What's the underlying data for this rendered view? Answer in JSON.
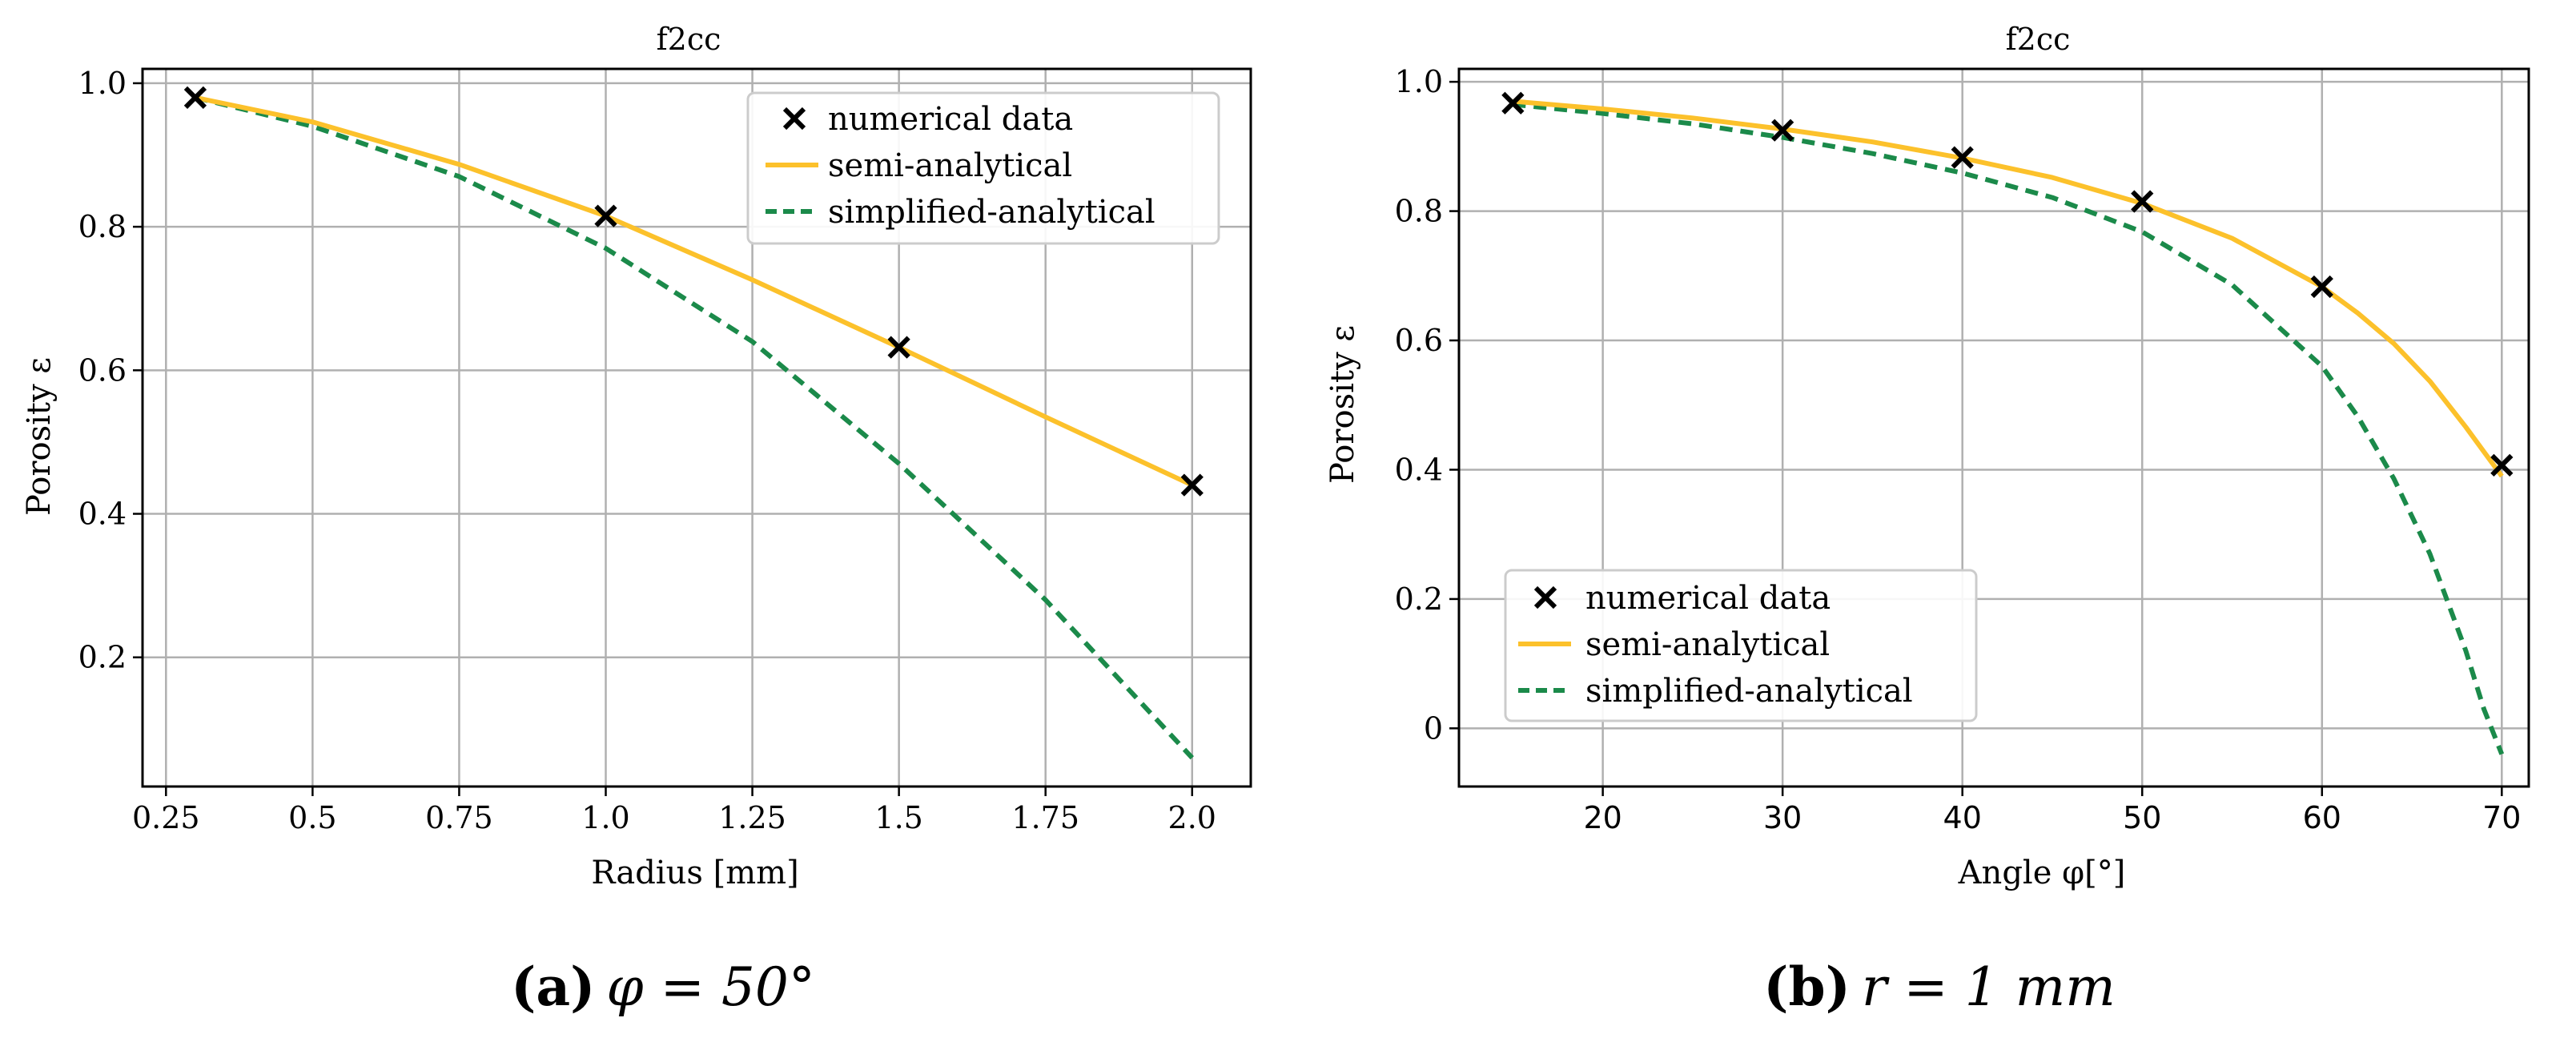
{
  "chart_data": [
    {
      "type": "line",
      "title": "f2cc",
      "xlabel": "Radius [mm]",
      "ylabel": "Porosity ε",
      "xlim": [
        0.21,
        2.1
      ],
      "ylim": [
        0.02,
        1.02
      ],
      "xticks": [
        "0.25",
        "0.5",
        "0.75",
        "1.0",
        "1.25",
        "1.5",
        "1.75",
        "2.0"
      ],
      "xtick_values": [
        0.25,
        0.5,
        0.75,
        1.0,
        1.25,
        1.5,
        1.75,
        2.0
      ],
      "yticks": [
        "0.2",
        "0.4",
        "0.6",
        "0.8",
        "1.0"
      ],
      "ytick_values": [
        0.2,
        0.4,
        0.6,
        0.8,
        1.0
      ],
      "grid": true,
      "legend_position": "top-right",
      "caption_label": "(a)",
      "caption_text": "φ = 50°",
      "series": [
        {
          "name": "numerical data",
          "style": "markers",
          "color": "#000000",
          "x": [
            0.3,
            1.0,
            1.5,
            2.0
          ],
          "y": [
            0.98,
            0.815,
            0.632,
            0.44
          ]
        },
        {
          "name": "semi-analytical",
          "style": "solid",
          "color": "#fcc12b",
          "x": [
            0.3,
            0.5,
            0.75,
            1.0,
            1.25,
            1.5,
            1.75,
            2.0
          ],
          "y": [
            0.98,
            0.946,
            0.887,
            0.815,
            0.726,
            0.632,
            0.535,
            0.44
          ]
        },
        {
          "name": "simplified-analytical",
          "style": "dashed",
          "color": "#1b8a4a",
          "x": [
            0.3,
            0.5,
            0.75,
            1.0,
            1.25,
            1.5,
            1.75,
            2.0
          ],
          "y": [
            0.98,
            0.94,
            0.87,
            0.77,
            0.64,
            0.47,
            0.28,
            0.06
          ]
        }
      ]
    },
    {
      "type": "line",
      "title": "f2cc",
      "xlabel": "Angle φ[°]",
      "ylabel": "Porosity ε",
      "xlim": [
        12.0,
        71.5
      ],
      "ylim": [
        -0.09,
        1.02
      ],
      "xticks": [
        "20",
        "30",
        "40",
        "50",
        "60",
        "70"
      ],
      "xtick_values": [
        20,
        30,
        40,
        50,
        60,
        70
      ],
      "yticks": [
        "0",
        "0.2",
        "0.4",
        "0.6",
        "0.8",
        "1.0"
      ],
      "ytick_values": [
        0,
        0.2,
        0.4,
        0.6,
        0.8,
        1.0
      ],
      "grid": true,
      "legend_position": "lower-left",
      "caption_label": "(b)",
      "caption_text": "r = 1 mm",
      "series": [
        {
          "name": "numerical data",
          "style": "markers",
          "color": "#000000",
          "x": [
            15,
            30,
            40,
            50,
            60,
            70
          ],
          "y": [
            0.967,
            0.925,
            0.883,
            0.815,
            0.683,
            0.407
          ]
        },
        {
          "name": "semi-analytical",
          "style": "solid",
          "color": "#fcc12b",
          "x": [
            15,
            20,
            25,
            30,
            35,
            40,
            45,
            50,
            55,
            60,
            62,
            64,
            66,
            68,
            70
          ],
          "y": [
            0.97,
            0.958,
            0.944,
            0.927,
            0.907,
            0.882,
            0.852,
            0.812,
            0.758,
            0.683,
            0.642,
            0.595,
            0.537,
            0.466,
            0.39
          ]
        },
        {
          "name": "simplified-analytical",
          "style": "dashed",
          "color": "#1b8a4a",
          "x": [
            15,
            20,
            25,
            30,
            35,
            40,
            45,
            50,
            55,
            60,
            62,
            64,
            66,
            68,
            69,
            70
          ],
          "y": [
            0.965,
            0.951,
            0.935,
            0.914,
            0.889,
            0.859,
            0.821,
            0.768,
            0.686,
            0.56,
            0.482,
            0.386,
            0.27,
            0.12,
            0.03,
            -0.04
          ]
        }
      ]
    }
  ]
}
